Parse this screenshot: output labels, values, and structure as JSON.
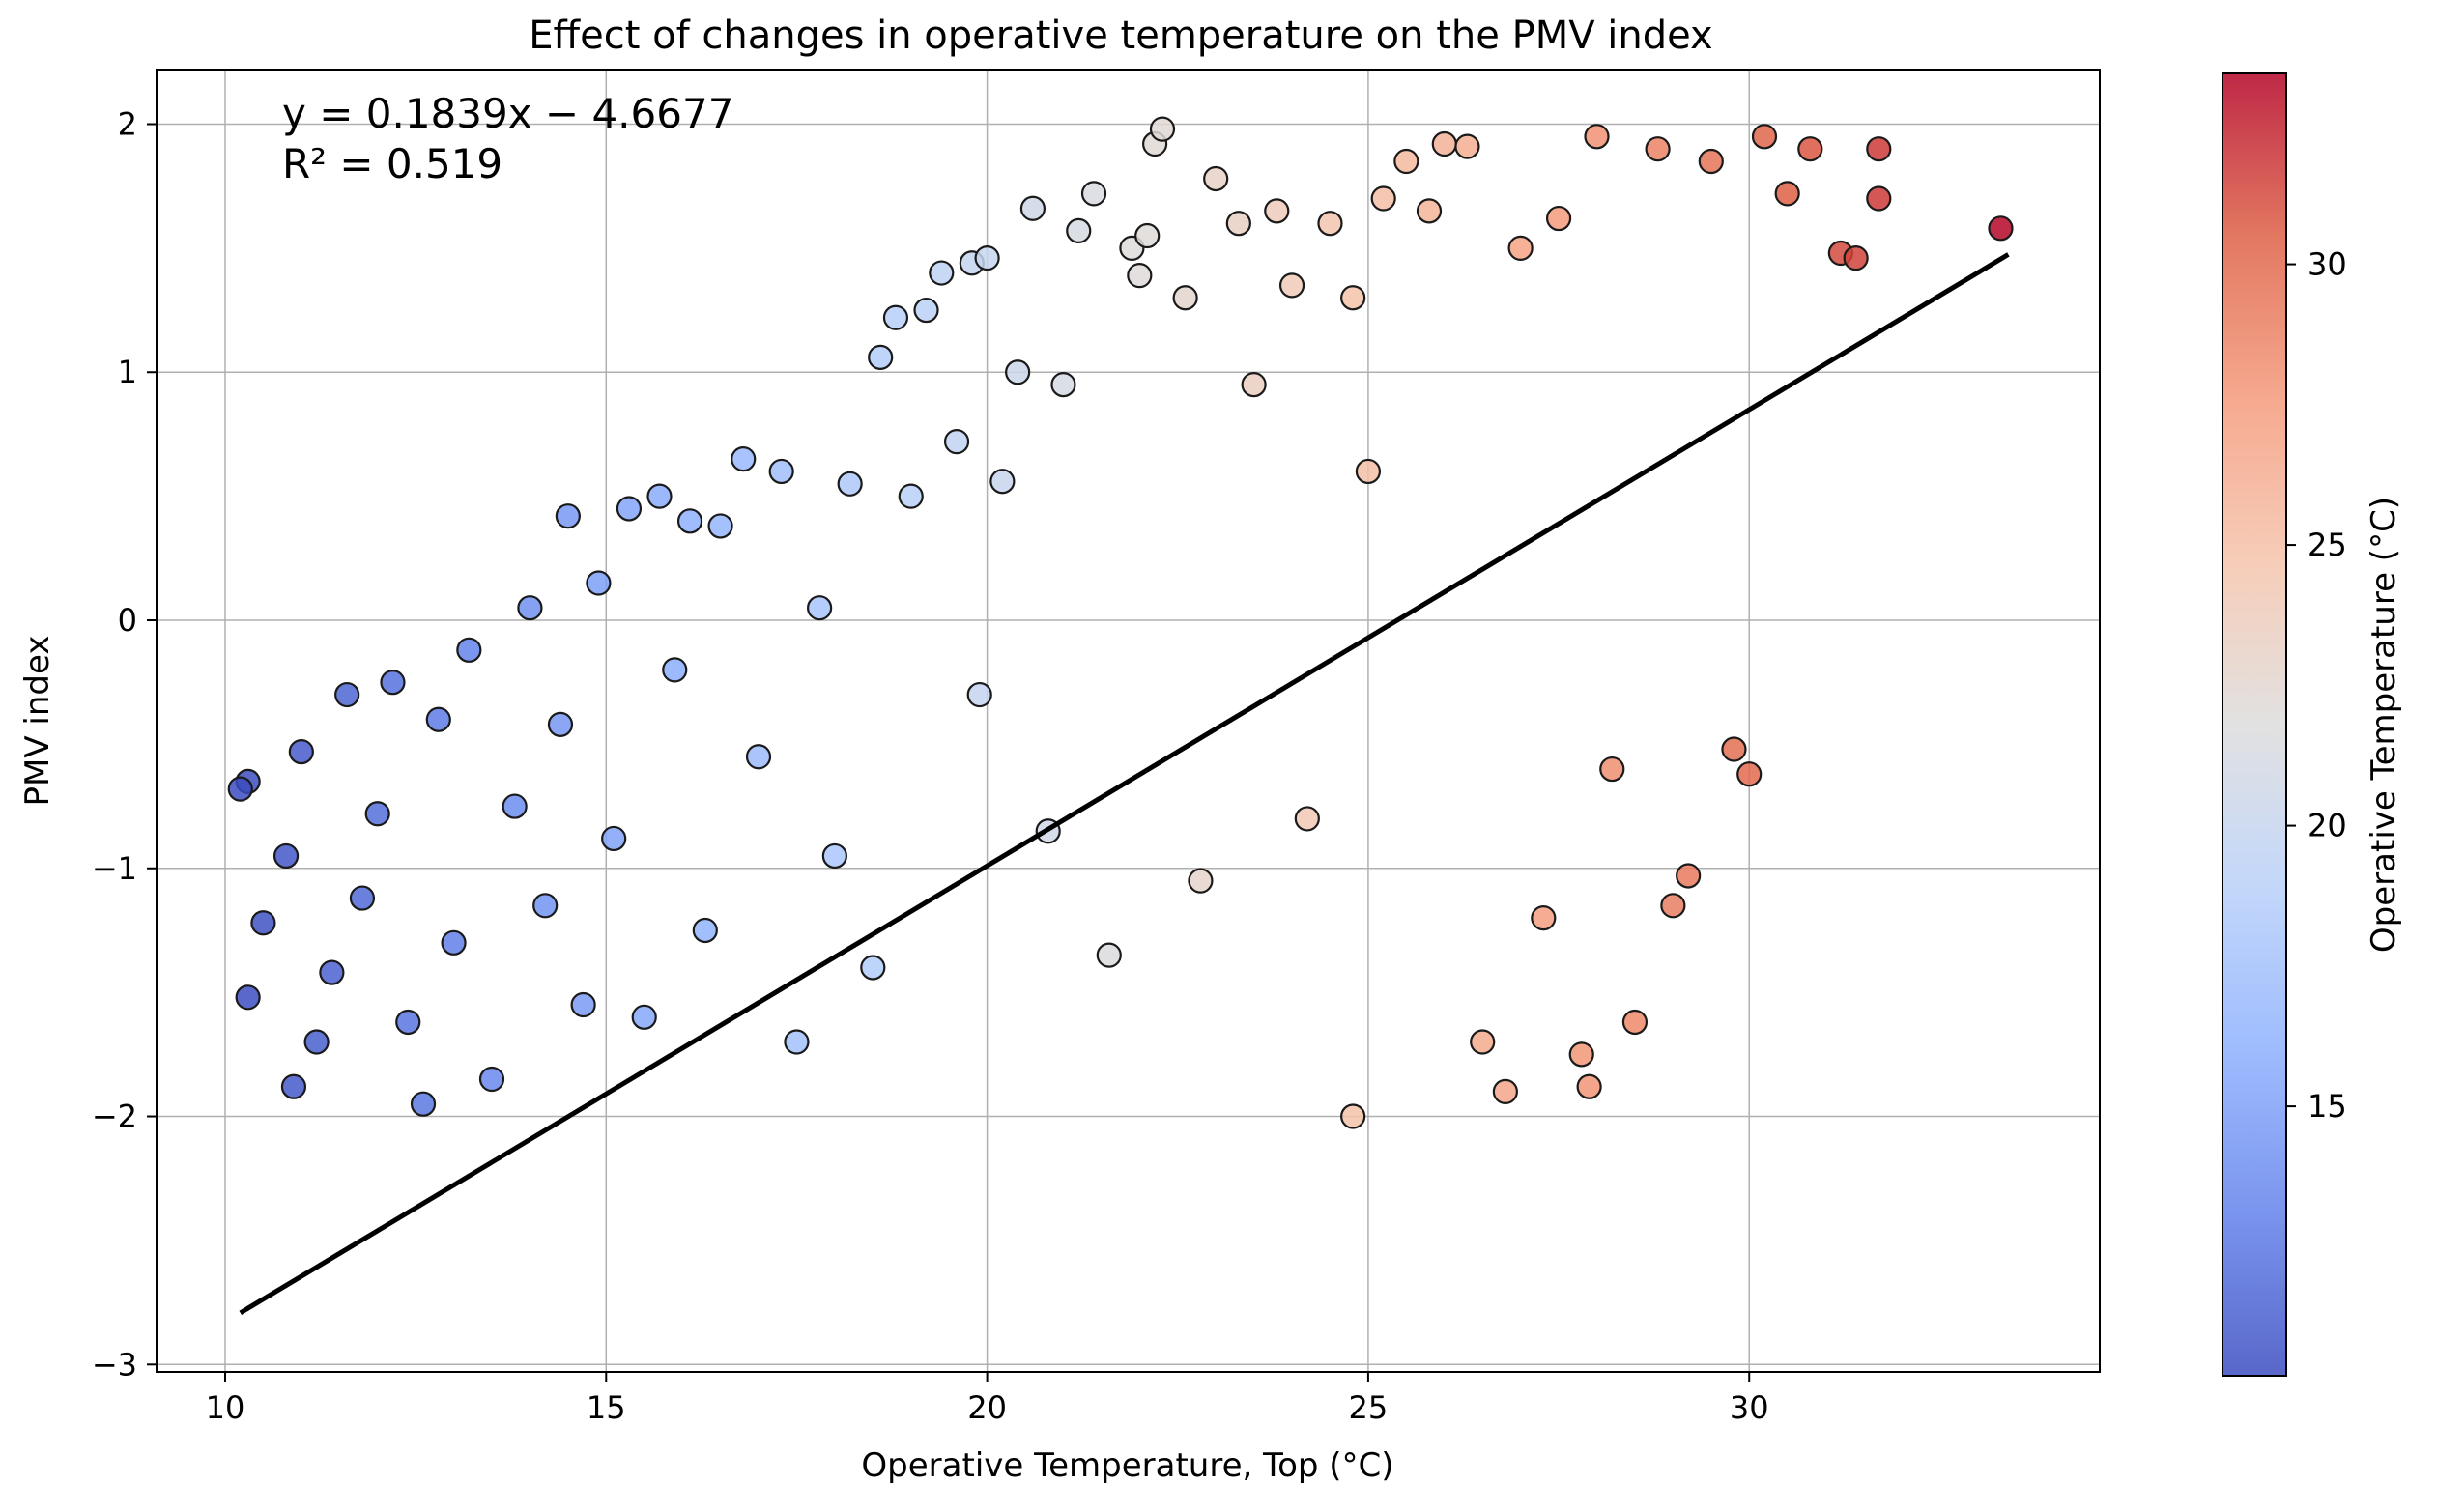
{
  "chart_data": {
    "type": "scatter",
    "title": "Effect of changes in operative temperature on the PMV index",
    "xlabel": "Operative Temperature, Top (°C)",
    "ylabel": "PMV index",
    "xlim": [
      9.1,
      34.6
    ],
    "ylim": [
      -3.03,
      2.22
    ],
    "xticks": [
      10,
      15,
      20,
      25,
      30
    ],
    "yticks": [
      2,
      1,
      0,
      -1,
      -2,
      -3
    ],
    "xtick_labels": [
      "10",
      "15",
      "20",
      "25",
      "30"
    ],
    "ytick_labels": [
      "2",
      "1",
      "0",
      "−1",
      "−2",
      "−3"
    ],
    "grid": true,
    "colormap": "coolwarm",
    "color_range": [
      10.2,
      33.4
    ],
    "colorbar": {
      "label": "Operative Temperature (°C)",
      "ticks": [
        15,
        20,
        25,
        30
      ],
      "tick_labels": [
        "15",
        "20",
        "25",
        "30"
      ]
    },
    "regression": {
      "slope": 0.1839,
      "intercept": -4.6677,
      "x_range": [
        10.2,
        33.4
      ],
      "equation": "y = 0.1839x − 4.6677",
      "r_squared": "R² = 0.519"
    },
    "series": [
      {
        "name": "observations",
        "points": [
          [
            10.3,
            -0.65
          ],
          [
            10.2,
            -0.68
          ],
          [
            10.3,
            -1.52
          ],
          [
            10.5,
            -1.22
          ],
          [
            10.8,
            -0.95
          ],
          [
            10.9,
            -1.88
          ],
          [
            11.0,
            -0.53
          ],
          [
            11.2,
            -1.7
          ],
          [
            11.4,
            -1.42
          ],
          [
            11.6,
            -0.3
          ],
          [
            11.8,
            -1.12
          ],
          [
            12.0,
            -0.78
          ],
          [
            12.2,
            -0.25
          ],
          [
            12.4,
            -1.62
          ],
          [
            12.6,
            -1.95
          ],
          [
            12.8,
            -0.4
          ],
          [
            13.0,
            -1.3
          ],
          [
            13.2,
            -0.12
          ],
          [
            13.5,
            -1.85
          ],
          [
            13.8,
            -0.75
          ],
          [
            14.0,
            0.05
          ],
          [
            14.2,
            -1.15
          ],
          [
            14.4,
            -0.42
          ],
          [
            14.5,
            0.42
          ],
          [
            14.7,
            -1.55
          ],
          [
            14.9,
            0.15
          ],
          [
            15.1,
            -0.88
          ],
          [
            15.3,
            0.45
          ],
          [
            15.5,
            -1.6
          ],
          [
            15.7,
            0.5
          ],
          [
            15.9,
            -0.2
          ],
          [
            16.1,
            0.4
          ],
          [
            16.3,
            -1.25
          ],
          [
            16.5,
            0.38
          ],
          [
            16.8,
            0.65
          ],
          [
            17.0,
            -0.55
          ],
          [
            17.3,
            0.6
          ],
          [
            17.5,
            -1.7
          ],
          [
            17.8,
            0.05
          ],
          [
            18.0,
            -0.95
          ],
          [
            18.2,
            0.55
          ],
          [
            18.5,
            -1.4
          ],
          [
            18.6,
            1.06
          ],
          [
            18.8,
            1.22
          ],
          [
            19.0,
            0.5
          ],
          [
            19.2,
            1.25
          ],
          [
            19.4,
            1.4
          ],
          [
            19.6,
            0.72
          ],
          [
            19.8,
            1.44
          ],
          [
            19.9,
            -0.3
          ],
          [
            20.0,
            1.46
          ],
          [
            20.2,
            0.56
          ],
          [
            20.4,
            1.0
          ],
          [
            20.6,
            1.66
          ],
          [
            20.8,
            -0.85
          ],
          [
            21.0,
            0.95
          ],
          [
            21.2,
            1.57
          ],
          [
            21.4,
            1.72
          ],
          [
            21.6,
            -1.35
          ],
          [
            21.9,
            1.5
          ],
          [
            22.0,
            1.39
          ],
          [
            22.1,
            1.55
          ],
          [
            22.2,
            1.92
          ],
          [
            22.3,
            1.98
          ],
          [
            22.6,
            1.3
          ],
          [
            22.8,
            -1.05
          ],
          [
            23.0,
            1.78
          ],
          [
            23.3,
            1.6
          ],
          [
            23.5,
            0.95
          ],
          [
            23.8,
            1.65
          ],
          [
            24.0,
            1.35
          ],
          [
            24.2,
            -0.8
          ],
          [
            24.5,
            1.6
          ],
          [
            24.8,
            1.3
          ],
          [
            24.8,
            -2.0
          ],
          [
            25.0,
            0.6
          ],
          [
            25.2,
            1.7
          ],
          [
            25.5,
            1.85
          ],
          [
            25.8,
            1.65
          ],
          [
            26.0,
            1.92
          ],
          [
            26.3,
            1.91
          ],
          [
            26.5,
            -1.7
          ],
          [
            26.8,
            -1.9
          ],
          [
            27.0,
            1.5
          ],
          [
            27.3,
            -1.2
          ],
          [
            27.5,
            1.62
          ],
          [
            27.8,
            -1.75
          ],
          [
            27.9,
            -1.88
          ],
          [
            28.0,
            1.95
          ],
          [
            28.2,
            -0.6
          ],
          [
            28.5,
            -1.62
          ],
          [
            28.8,
            1.9
          ],
          [
            29.0,
            -1.15
          ],
          [
            29.2,
            -1.03
          ],
          [
            29.5,
            1.85
          ],
          [
            29.8,
            -0.52
          ],
          [
            30.0,
            -0.62
          ],
          [
            30.2,
            1.95
          ],
          [
            30.5,
            1.72
          ],
          [
            30.8,
            1.9
          ],
          [
            31.2,
            1.48
          ],
          [
            31.4,
            1.46
          ],
          [
            31.7,
            1.9
          ],
          [
            31.7,
            1.7
          ],
          [
            33.3,
            1.58
          ]
        ]
      }
    ]
  }
}
